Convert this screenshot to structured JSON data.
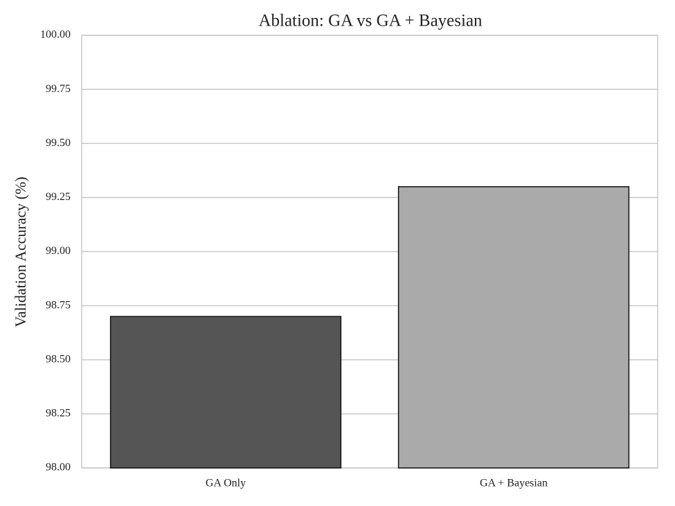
{
  "chart_data": {
    "type": "bar",
    "title": "Ablation: GA vs GA + Bayesian",
    "ylabel": "Validation Accuracy (%)",
    "categories": [
      "GA Only",
      "GA + Bayesian"
    ],
    "values": [
      98.7,
      99.3
    ],
    "colors": [
      "#555555",
      "#aaaaaa"
    ],
    "ylim": [
      98,
      100
    ],
    "yticks": [
      {
        "value": 98,
        "label": "98.00"
      },
      {
        "value": 98.25,
        "label": "98.25"
      },
      {
        "value": 98.5,
        "label": "98.50"
      },
      {
        "value": 98.75,
        "label": "98.75"
      },
      {
        "value": 99,
        "label": "99.00"
      },
      {
        "value": 99.25,
        "label": "99.25"
      },
      {
        "value": 99.5,
        "label": "99.50"
      },
      {
        "value": 99.75,
        "label": "99.75"
      },
      {
        "value": 100,
        "label": "100.00"
      }
    ],
    "grid": true
  }
}
